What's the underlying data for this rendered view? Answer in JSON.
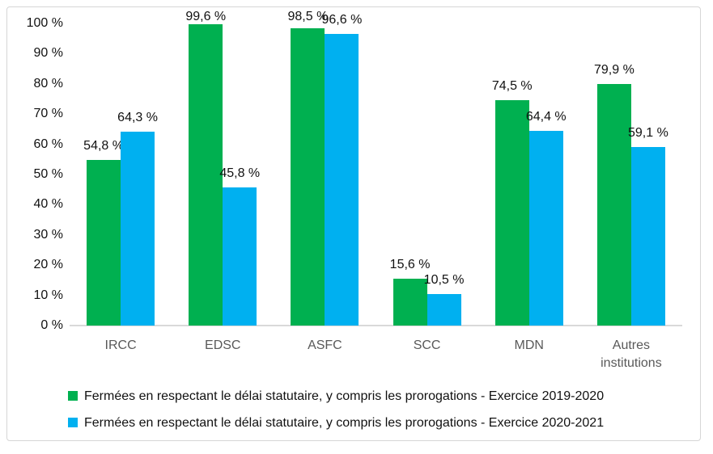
{
  "chart_data": {
    "type": "bar",
    "categories": [
      "IRCC",
      "EDSC",
      "ASFC",
      "SCC",
      "MDN",
      "Autres institutions"
    ],
    "series": [
      {
        "name": "Fermées en respectant le délai statutaire, y compris les prorogations - Exercice 2019-2020",
        "color": "#00B050",
        "values": [
          54.8,
          99.6,
          98.5,
          15.6,
          74.5,
          79.9
        ],
        "labels": [
          "54,8 %",
          "99,6 %",
          "98,5 %",
          "15,6 %",
          "74,5 %",
          "79,9 %"
        ]
      },
      {
        "name": "Fermées en respectant le délai statutaire, y compris les prorogations - Exercice 2020-2021",
        "color": "#00B0F0",
        "values": [
          64.3,
          45.8,
          96.6,
          10.5,
          64.4,
          59.1
        ],
        "labels": [
          "64,3 %",
          "45,8 %",
          "96,6 %",
          "10,5 %",
          "64,4 %",
          "59,1 %"
        ]
      }
    ],
    "y_ticks": [
      "0 %",
      "10 %",
      "20 %",
      "30 %",
      "40 %",
      "50 %",
      "60 %",
      "70 %",
      "80 %",
      "90 %",
      "100 %"
    ],
    "ylim": [
      0,
      100
    ],
    "xlabel": "",
    "ylabel": "",
    "title": "",
    "grid": false,
    "legend_position": "bottom"
  }
}
